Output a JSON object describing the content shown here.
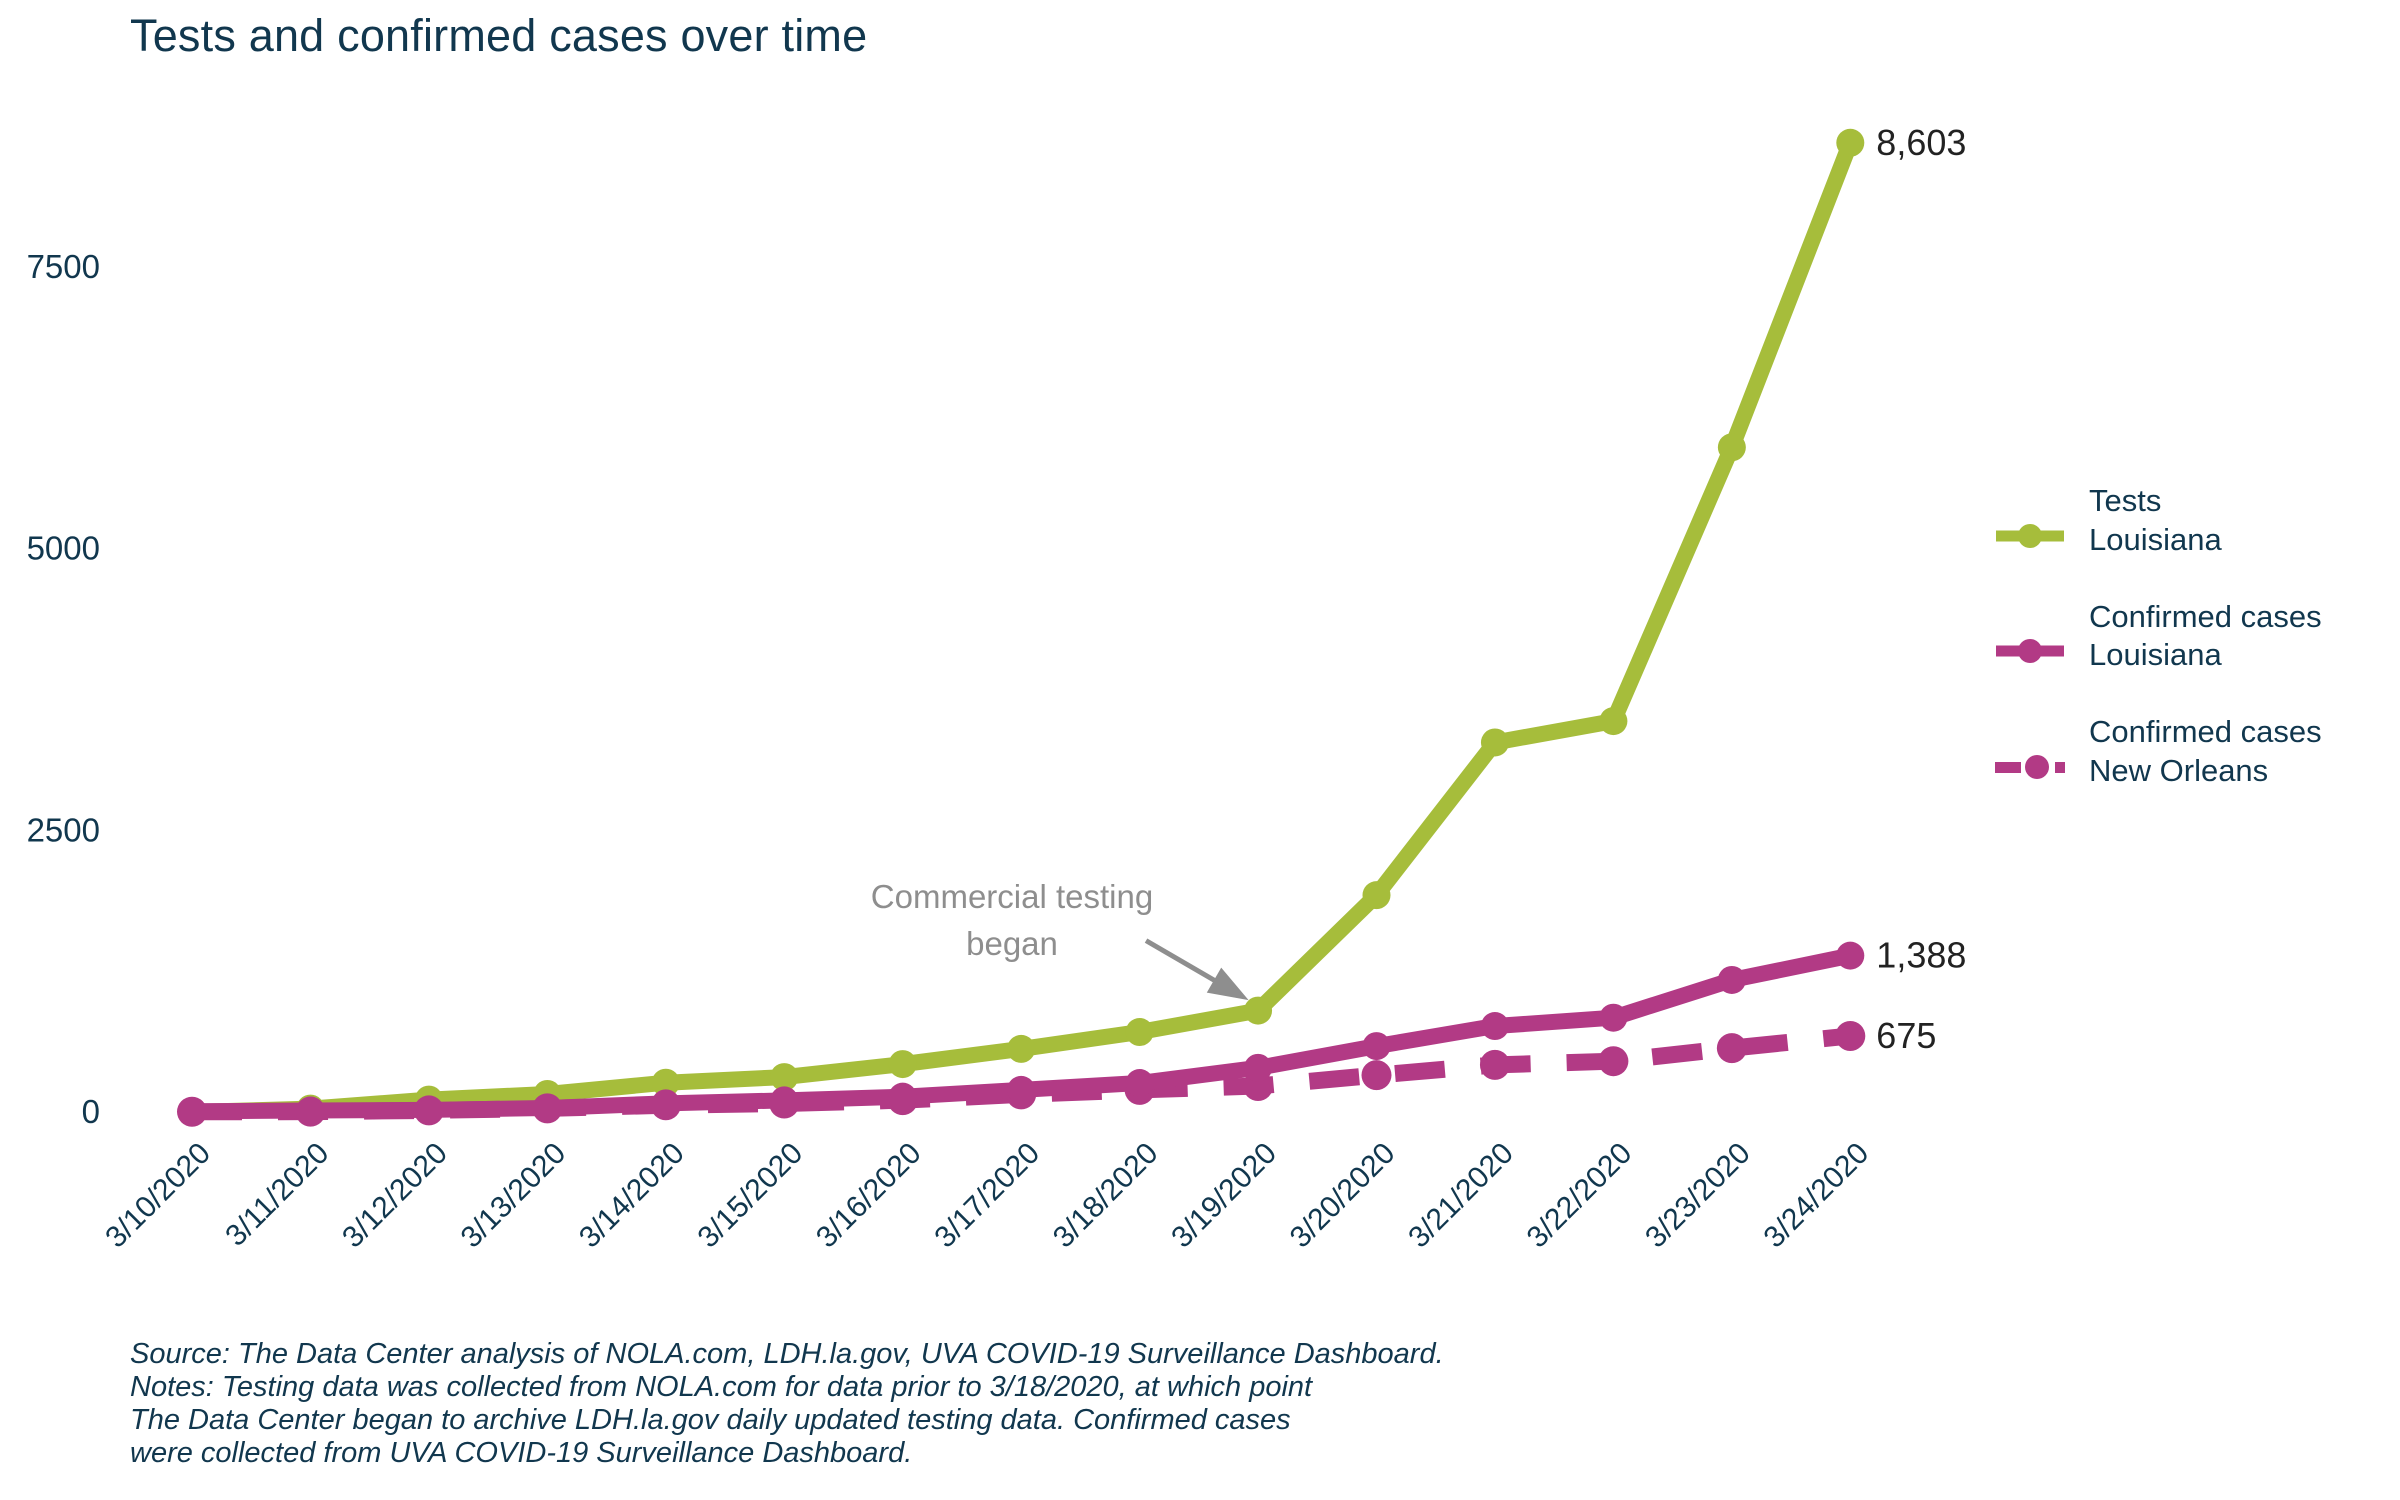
{
  "title": "Tests and confirmed cases over time",
  "colors": {
    "tests_green": "#a6bd3b",
    "cases_magenta": "#b23a85",
    "text_navy": "#11374e",
    "annotation_gray": "#8e8e8e",
    "end_label_dark": "#222222"
  },
  "legend": {
    "items": [
      {
        "series": "Tests",
        "region": "Louisiana",
        "style": "solid",
        "color": "#a6bd3b"
      },
      {
        "series": "Confirmed cases",
        "region": "Louisiana",
        "style": "solid",
        "color": "#b23a85"
      },
      {
        "series": "Confirmed cases",
        "region": "New Orleans",
        "style": "dashed-dot",
        "color": "#b23a85"
      }
    ]
  },
  "annotation": {
    "line1": "Commercial testing",
    "line2": "began",
    "target_date": "3/19/2020"
  },
  "notes": [
    "Source: The Data Center analysis of NOLA.com, LDH.la.gov, UVA COVID-19 Surveillance Dashboard.",
    "Notes: Testing data was collected from NOLA.com for data prior to 3/18/2020, at which point",
    "The Data Center began to archive LDH.la.gov daily updated testing data. Confirmed cases",
    "were collected from UVA COVID-19 Surveillance Dashboard."
  ],
  "chart_data": {
    "type": "line",
    "x": [
      "3/10/2020",
      "3/11/2020",
      "3/12/2020",
      "3/13/2020",
      "3/14/2020",
      "3/15/2020",
      "3/16/2020",
      "3/17/2020",
      "3/18/2020",
      "3/19/2020",
      "3/20/2020",
      "3/21/2020",
      "3/22/2020",
      "3/23/2020",
      "3/24/2020"
    ],
    "series": [
      {
        "name": "Tests Louisiana",
        "color": "#a6bd3b",
        "dash": null,
        "end_label": "8,603",
        "values": [
          0,
          30,
          110,
          160,
          260,
          310,
          425,
          560,
          710,
          900,
          1925,
          3280,
          3470,
          5900,
          8603
        ]
      },
      {
        "name": "Confirmed cases New Orleans",
        "color": "#b23a85",
        "dash": "50 36",
        "end_label": "675",
        "values": [
          2,
          3,
          14,
          32,
          60,
          75,
          105,
          156,
          196,
          231,
          327,
          418,
          451,
          567,
          675
        ]
      },
      {
        "name": "Confirmed cases Louisiana",
        "color": "#b23a85",
        "dash": null,
        "end_label": "1,388",
        "values": [
          6,
          13,
          19,
          36,
          77,
          103,
          136,
          196,
          257,
          392,
          585,
          763,
          837,
          1172,
          1388
        ]
      }
    ],
    "yticks": [
      0,
      2500,
      5000,
      7500
    ],
    "ylim": [
      0,
      8700
    ],
    "xlabel": "",
    "ylabel": "",
    "grid": false,
    "axis_lines": false,
    "legend_position": "right"
  }
}
